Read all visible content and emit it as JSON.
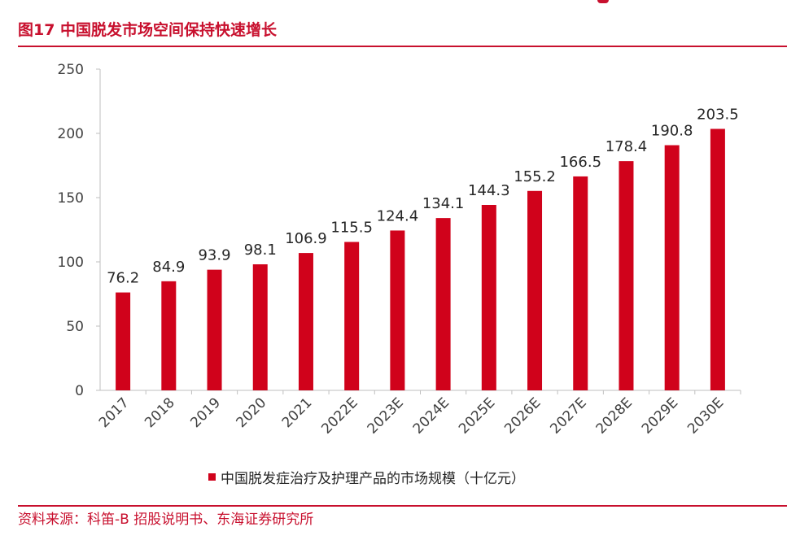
{
  "figure": {
    "title": "图17  中国脱发市场空间保持快速增长",
    "source": "资料来源：科笛-B 招股说明书、东海证券研究所"
  },
  "colors": {
    "accent": "#c8102e",
    "bar": "#d0021b"
  },
  "chart_data": {
    "type": "bar",
    "title": "",
    "xlabel": "",
    "ylabel": "",
    "ylim": [
      0,
      250
    ],
    "yticks": [
      0,
      50,
      100,
      150,
      200,
      250
    ],
    "categories": [
      "2017",
      "2018",
      "2019",
      "2020",
      "2021",
      "2022E",
      "2023E",
      "2024E",
      "2025E",
      "2026E",
      "2027E",
      "2028E",
      "2029E",
      "2030E"
    ],
    "series": [
      {
        "name": "中国脱发症治疗及护理产品的市场规模（十亿元）",
        "values": [
          76.2,
          84.9,
          93.9,
          98.1,
          106.9,
          115.5,
          124.4,
          134.1,
          144.3,
          155.2,
          166.5,
          178.4,
          190.8,
          203.5
        ],
        "labels": [
          "76.2",
          "84.9",
          "93.9",
          "98.1",
          "106.9",
          "115.5",
          "124.4",
          "134.1",
          "144.3",
          "155.2",
          "166.5",
          "178.4",
          "190.8",
          "203.5"
        ]
      }
    ],
    "grid": false,
    "legend_position": "bottom"
  }
}
